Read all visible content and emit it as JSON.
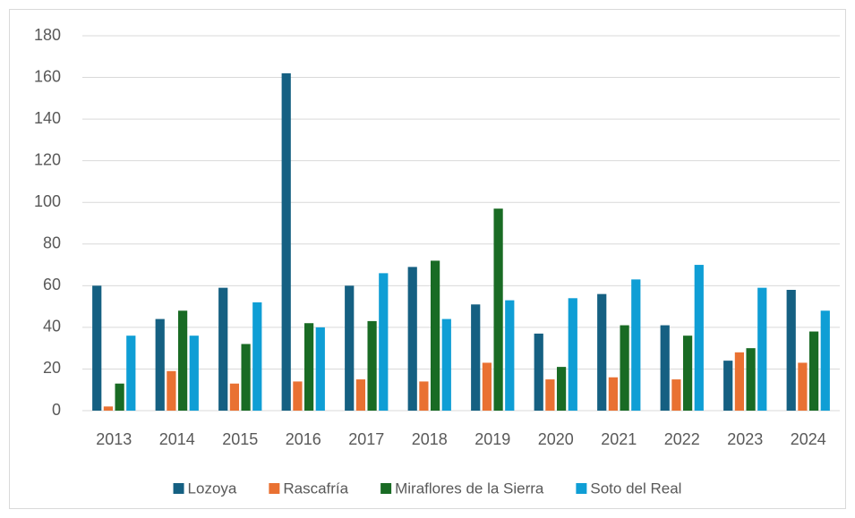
{
  "chart_data": {
    "type": "bar",
    "categories": [
      "2013",
      "2014",
      "2015",
      "2016",
      "2017",
      "2018",
      "2019",
      "2020",
      "2021",
      "2022",
      "2023",
      "2024"
    ],
    "series": [
      {
        "name": "Lozoya",
        "color": "#156082",
        "values": [
          60,
          44,
          59,
          162,
          60,
          69,
          51,
          37,
          56,
          41,
          24,
          58
        ]
      },
      {
        "name": "Rascafría",
        "color": "#e97132",
        "values": [
          2,
          19,
          13,
          14,
          15,
          14,
          23,
          15,
          16,
          15,
          28,
          23
        ]
      },
      {
        "name": "Miraflores de la Sierra",
        "color": "#196b24",
        "values": [
          13,
          48,
          32,
          42,
          43,
          72,
          97,
          21,
          41,
          36,
          30,
          38
        ]
      },
      {
        "name": "Soto del Real",
        "color": "#0f9ed5",
        "values": [
          36,
          36,
          52,
          40,
          66,
          44,
          53,
          54,
          63,
          70,
          59,
          48
        ]
      }
    ],
    "ylim": [
      0,
      180
    ],
    "yticks": [
      0,
      20,
      40,
      60,
      80,
      100,
      120,
      140,
      160,
      180
    ],
    "grid": true,
    "legend": "bottom"
  }
}
